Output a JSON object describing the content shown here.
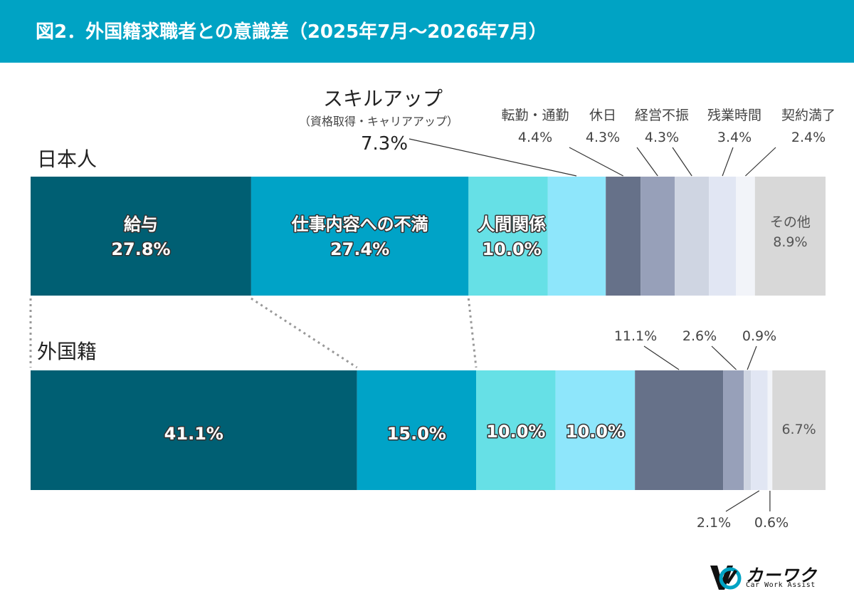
{
  "header": {
    "title": "図2．外国籍求職者との意識差（2025年7月～2026年7月）"
  },
  "colors": {
    "header_bg": "#00a3c4",
    "segments": [
      "#005f73",
      "#00a3c7",
      "#66e0e6",
      "#8ee6fb",
      "#667189",
      "#97a0b9",
      "#cfd5e2",
      "#e1e6f3",
      "#f2f4f9",
      "#d8d8d8"
    ]
  },
  "chart_data": {
    "type": "stacked-bar-100",
    "categories": [
      "日本人",
      "外国籍"
    ],
    "segments": [
      {
        "label": "給与",
        "japanese": 27.8,
        "foreign": 41.1
      },
      {
        "label": "仕事内容への不満",
        "japanese": 27.4,
        "foreign": 15.0
      },
      {
        "label": "人間関係",
        "japanese": 10.0,
        "foreign": 10.0
      },
      {
        "label": "スキルアップ",
        "sublabel": "（資格取得・キャリアアップ）",
        "japanese": 7.3,
        "foreign": 10.0
      },
      {
        "label": "転勤・通勤",
        "japanese": 4.4,
        "foreign": 11.1
      },
      {
        "label": "休日",
        "japanese": 4.3,
        "foreign": 2.6
      },
      {
        "label": "経営不振",
        "japanese": 4.3,
        "foreign": 0.9
      },
      {
        "label": "残業時間",
        "japanese": 3.4,
        "foreign": 2.1
      },
      {
        "label": "契約満了",
        "japanese": 2.4,
        "foreign": 0.6
      },
      {
        "label": "その他",
        "japanese": 8.9,
        "foreign": 6.7
      }
    ],
    "value_labels": {
      "japanese": [
        "27.8%",
        "27.4%",
        "10.0%",
        "7.3%",
        "4.4%",
        "4.3%",
        "4.3%",
        "3.4%",
        "2.4%",
        "8.9%"
      ],
      "foreign": [
        "41.1%",
        "15.0%",
        "10.0%",
        "10.0%",
        "11.1%",
        "2.6%",
        "0.9%",
        "2.1%",
        "0.6%",
        "6.7%"
      ]
    },
    "legend": "none",
    "grid": false
  },
  "logo": {
    "name": "カーワク",
    "subtitle": "Car Work Assist"
  }
}
